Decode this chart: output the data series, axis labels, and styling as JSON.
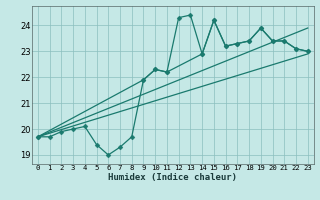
{
  "xlabel": "Humidex (Indice chaleur)",
  "bg_color": "#c5e8e6",
  "grid_color": "#8bbfbf",
  "line_color": "#1a7a6e",
  "xlim": [
    -0.5,
    23.5
  ],
  "ylim": [
    18.65,
    24.75
  ],
  "yticks": [
    19,
    20,
    21,
    22,
    23,
    24
  ],
  "xticks": [
    0,
    1,
    2,
    3,
    4,
    5,
    6,
    7,
    8,
    9,
    10,
    11,
    12,
    13,
    14,
    15,
    16,
    17,
    18,
    19,
    20,
    21,
    22,
    23
  ],
  "series1_x": [
    0,
    1,
    2,
    3,
    4,
    5,
    6,
    7,
    8,
    9,
    10,
    11,
    12,
    13,
    14,
    15,
    16,
    17,
    18,
    19,
    20,
    21,
    22,
    23
  ],
  "series1_y": [
    19.7,
    19.7,
    19.9,
    20.0,
    20.1,
    19.4,
    19.0,
    19.3,
    19.7,
    21.9,
    22.3,
    22.2,
    24.3,
    24.4,
    22.9,
    24.2,
    23.2,
    23.3,
    23.4,
    23.9,
    23.4,
    23.4,
    23.1,
    23.0
  ],
  "trend1_x": [
    0,
    23
  ],
  "trend1_y": [
    19.7,
    23.9
  ],
  "trend2_x": [
    0,
    23
  ],
  "trend2_y": [
    19.7,
    22.9
  ],
  "series2_x": [
    0,
    9,
    10,
    11,
    14,
    15,
    16,
    17,
    18,
    19,
    20,
    21,
    22,
    23
  ],
  "series2_y": [
    19.7,
    21.9,
    22.3,
    22.2,
    22.9,
    24.2,
    23.2,
    23.3,
    23.4,
    23.9,
    23.4,
    23.4,
    23.1,
    23.0
  ]
}
